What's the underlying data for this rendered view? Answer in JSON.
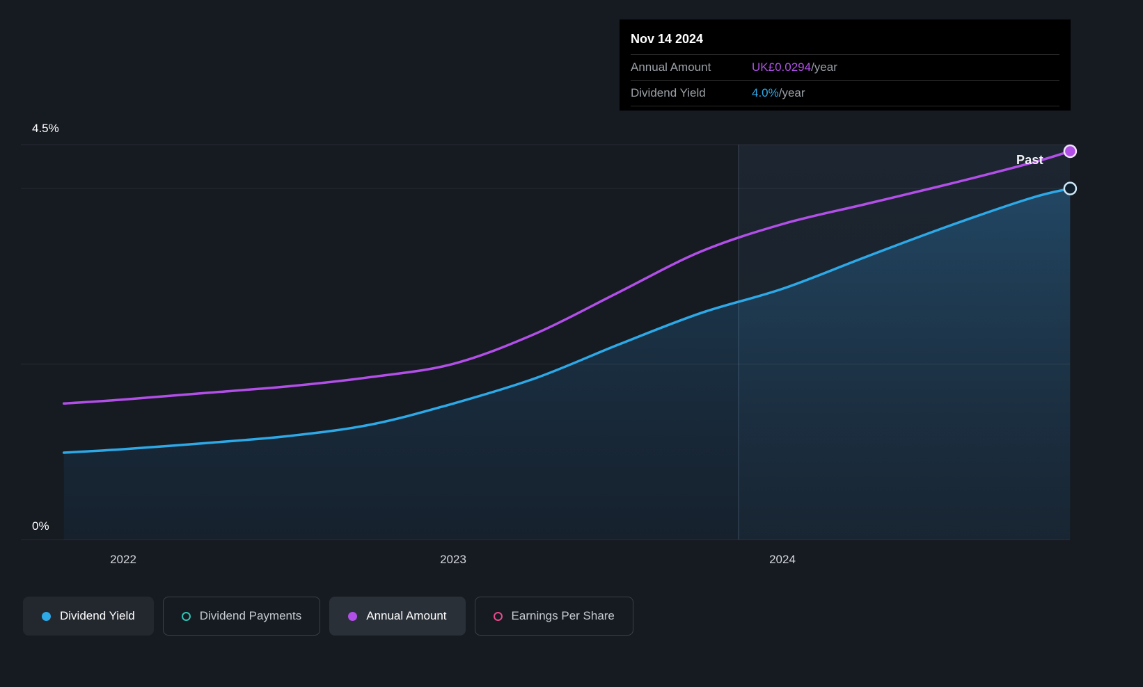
{
  "page": {
    "background": "#161a21"
  },
  "tooltip": {
    "date": "Nov 14 2024",
    "rows": [
      {
        "label": "Annual Amount",
        "value": "UK£0.0294",
        "suffix": "/year",
        "value_color": "#b24fe8"
      },
      {
        "label": "Dividend Yield",
        "value": "4.0%",
        "suffix": "/year",
        "value_color": "#2da9e8"
      }
    ]
  },
  "axis": {
    "y_top_label": "4.5%",
    "y_bottom_label": "0%",
    "x_ticks": [
      "2022",
      "2023",
      "2024"
    ]
  },
  "past_label": "Past",
  "legend": {
    "items": [
      {
        "label": "Dividend Yield",
        "color": "#2da9e8",
        "filled": true,
        "active": true,
        "highlight": false
      },
      {
        "label": "Dividend Payments",
        "color": "#2dc5b4",
        "filled": false,
        "active": false,
        "highlight": false
      },
      {
        "label": "Annual Amount",
        "color": "#b24fe8",
        "filled": true,
        "active": true,
        "highlight": true
      },
      {
        "label": "Earnings Per Share",
        "color": "#e8498c",
        "filled": false,
        "active": false,
        "highlight": false
      }
    ]
  },
  "chart_data": {
    "type": "line",
    "title": "Dividend history (yield and annual amount)",
    "x_axis": {
      "tick_years": [
        2022,
        2023,
        2024
      ],
      "range": [
        2021.82,
        2024.87
      ]
    },
    "y_axis": {
      "label_top": "4.5%",
      "label_bottom": "0%",
      "min": 0,
      "max": 4.5,
      "unit": "%"
    },
    "gridlines_pct": [
      4.5,
      4.0,
      2.0,
      0
    ],
    "divider_year": 2023.865,
    "grid": true,
    "legend_position": "bottom",
    "series": [
      {
        "name": "Dividend Yield",
        "color": "#2da9e8",
        "unit": "%",
        "axis_max": 4.5,
        "fill": true,
        "endpoint": "ring",
        "points": [
          [
            2021.82,
            0.99
          ],
          [
            2022.0,
            1.03
          ],
          [
            2022.25,
            1.1
          ],
          [
            2022.5,
            1.18
          ],
          [
            2022.75,
            1.31
          ],
          [
            2023.0,
            1.55
          ],
          [
            2023.25,
            1.84
          ],
          [
            2023.5,
            2.22
          ],
          [
            2023.75,
            2.58
          ],
          [
            2024.0,
            2.86
          ],
          [
            2024.25,
            3.22
          ],
          [
            2024.5,
            3.57
          ],
          [
            2024.75,
            3.89
          ],
          [
            2024.87,
            4.0
          ]
        ]
      },
      {
        "name": "Annual Amount",
        "color": "#b24fe8",
        "unit": "UK£/year",
        "axis_max": 0.0299,
        "fill": false,
        "endpoint": "filled",
        "points": [
          [
            2021.82,
            0.0103
          ],
          [
            2022.0,
            0.0106
          ],
          [
            2022.25,
            0.0111
          ],
          [
            2022.5,
            0.0116
          ],
          [
            2022.75,
            0.0123
          ],
          [
            2023.0,
            0.0133
          ],
          [
            2023.25,
            0.0156
          ],
          [
            2023.5,
            0.0187
          ],
          [
            2023.75,
            0.0218
          ],
          [
            2024.0,
            0.0239
          ],
          [
            2024.25,
            0.0254
          ],
          [
            2024.5,
            0.0269
          ],
          [
            2024.75,
            0.0285
          ],
          [
            2024.87,
            0.0294
          ]
        ]
      }
    ]
  }
}
